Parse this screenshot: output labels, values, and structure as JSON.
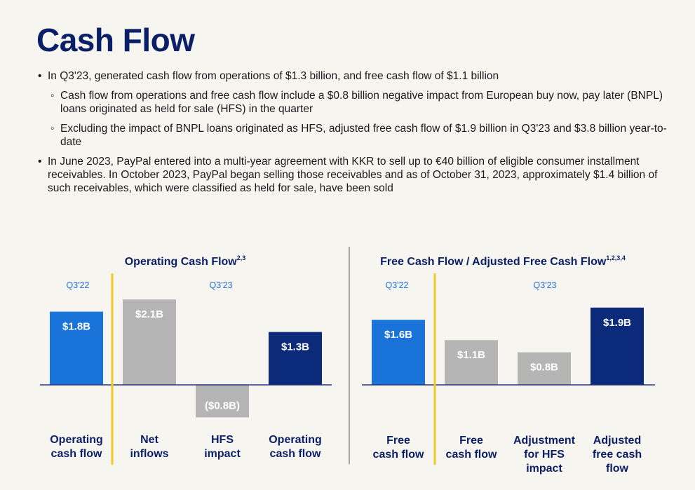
{
  "page": {
    "title": "Cash Flow",
    "bullets": [
      "In Q3'23, generated cash flow from operations of $1.3 billion, and free cash flow of $1.1 billion",
      "Cash flow from operations and free cash flow include a $0.8 billion negative impact from European buy now, pay later (BNPL) loans originated as held for sale (HFS) in the quarter",
      "Excluding the impact of BNPL loans originated as HFS, adjusted free cash flow of $1.9 billion in Q3'23 and $3.8 billion year-to-date",
      "In June 2023, PayPal entered into a multi-year agreement with KKR to sell up to €40 billion of eligible consumer installment receivables. In October 2023, PayPal began selling those receivables and as of October 31, 2023, approximately $1.4 billion of such receivables, which were classified as held for sale, have been sold"
    ]
  },
  "colors": {
    "title": "#0b1f66",
    "bright_blue": "#1a73d9",
    "gray": "#b5b5b5",
    "navy": "#0c2a7a",
    "divider_yellow": "#f3c927",
    "period_text": "#1d6fd8"
  },
  "chart_data": [
    {
      "type": "bar",
      "title": "Operating Cash Flow",
      "title_superscript": "2,3",
      "period_labels": [
        "Q3'22",
        "Q3'23"
      ],
      "categories": [
        {
          "lines": [
            "Operating",
            "cash flow"
          ]
        },
        {
          "lines": [
            "Net",
            "inflows"
          ]
        },
        {
          "lines": [
            "HFS",
            "impact"
          ]
        },
        {
          "lines": [
            "Operating",
            "cash flow"
          ]
        }
      ],
      "values": [
        1.8,
        2.1,
        -0.8,
        1.3
      ],
      "value_labels": [
        "$1.8B",
        "$2.1B",
        "($0.8B)",
        "$1.3B"
      ],
      "bar_colors": [
        "bright_blue",
        "gray",
        "gray",
        "navy"
      ],
      "unit": "$B",
      "ylim": [
        -0.8,
        2.1
      ]
    },
    {
      "type": "bar",
      "title": "Free Cash Flow / Adjusted Free Cash Flow",
      "title_superscript": "1,2,3,4",
      "period_labels": [
        "Q3'22",
        "Q3'23"
      ],
      "categories": [
        {
          "lines": [
            "Free",
            "cash flow"
          ]
        },
        {
          "lines": [
            "Free",
            "cash flow"
          ]
        },
        {
          "lines": [
            "Adjustment",
            "for HFS",
            "impact"
          ]
        },
        {
          "lines": [
            "Adjusted",
            "free cash",
            "flow"
          ]
        }
      ],
      "values": [
        1.6,
        1.1,
        0.8,
        1.9
      ],
      "value_labels": [
        "$1.6B",
        "$1.1B",
        "$0.8B",
        "$1.9B"
      ],
      "bar_colors": [
        "bright_blue",
        "gray",
        "gray",
        "navy"
      ],
      "unit": "$B",
      "ylim": [
        0,
        1.9
      ]
    }
  ]
}
